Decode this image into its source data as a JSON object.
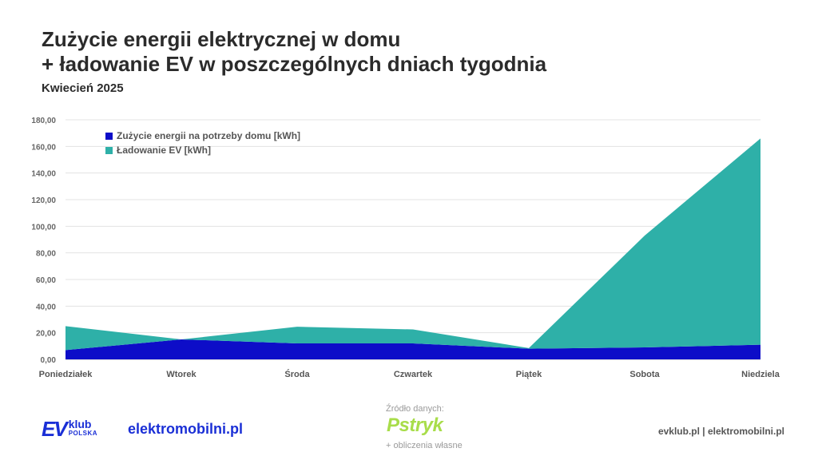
{
  "header": {
    "title_line1": "Zużycie energii elektrycznej w domu",
    "title_line2": "+ ładowanie EV w poszczególnych dniach tygodnia",
    "subtitle": "Kwiecień 2025"
  },
  "chart_data": {
    "type": "area",
    "stacked": true,
    "categories": [
      "Poniedziałek",
      "Wtorek",
      "Środa",
      "Czwartek",
      "Piątek",
      "Sobota",
      "Niedziela"
    ],
    "series": [
      {
        "name": "Zużycie energii na potrzeby domu [kWh]",
        "values": [
          7,
          15,
          12,
          12,
          8,
          9,
          11
        ],
        "color": "#0d0dc8"
      },
      {
        "name": "Ładowanie EV [kWh]",
        "values": [
          18,
          0,
          12.5,
          10.5,
          0.5,
          84,
          155
        ],
        "color": "#2eb0a8"
      }
    ],
    "y_ticks": [
      "0,00",
      "20,00",
      "40,00",
      "60,00",
      "80,00",
      "100,00",
      "120,00",
      "140,00",
      "160,00",
      "180,00"
    ],
    "ylim": [
      0,
      180
    ],
    "grid": true,
    "legend_position": "top-left"
  },
  "footer": {
    "ev_logo_mark": "EV",
    "ev_logo_klub": "klub",
    "ev_logo_polska": "POLSKA",
    "elektromobilni": "elektromobilni.pl",
    "source_label": "Źródło danych:",
    "source_brand": "Pstryk",
    "source_note": "+ obliczenia własne",
    "sites": "evklub.pl | elektromobilni.pl"
  }
}
